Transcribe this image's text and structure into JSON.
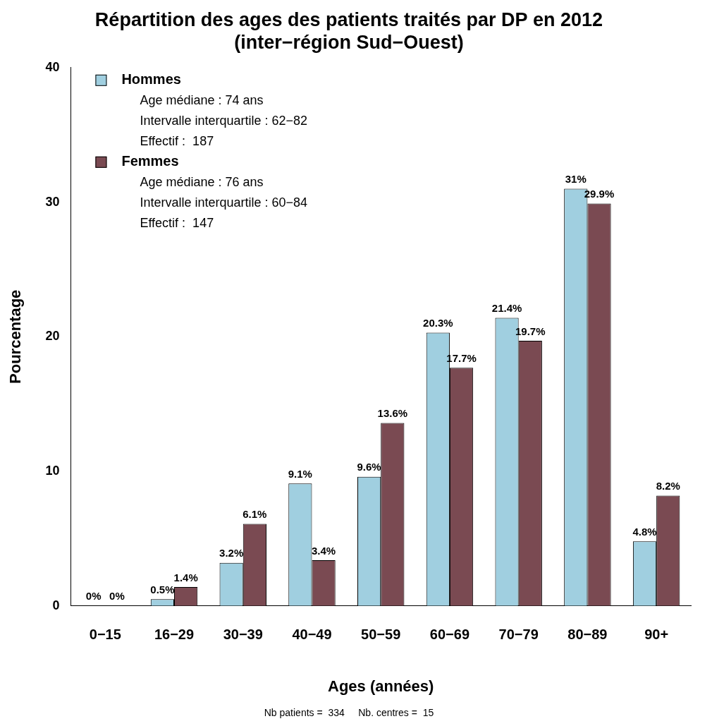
{
  "chart_data": {
    "type": "bar",
    "title": [
      "Répartition des ages des patients traités par DP en 2012",
      "(inter−région Sud−Ouest)"
    ],
    "x_label": "Ages (années)",
    "y_label": "Pourcentage",
    "footnote": "Nb patients =  334     Nb. centres =  15",
    "categories": [
      "0−15",
      "16−29",
      "30−39",
      "40−49",
      "50−59",
      "60−69",
      "70−79",
      "80−89",
      "90+"
    ],
    "series": [
      {
        "name": "Hommes",
        "color": "#a0cfe0",
        "values": [
          0,
          0.5,
          3.2,
          9.1,
          9.6,
          20.3,
          21.4,
          31,
          4.8
        ],
        "value_labels": [
          "0%",
          "0.5%",
          "3.2%",
          "9.1%",
          "9.6%",
          "20.3%",
          "21.4%",
          "31%",
          "4.8%"
        ],
        "details": [
          "Age médiane : 74 ans",
          "Intervalle interquartile : 62−82",
          "Effectif :  187"
        ]
      },
      {
        "name": "Femmes",
        "color": "#7a4a52",
        "values": [
          0,
          1.4,
          6.1,
          3.4,
          13.6,
          17.7,
          19.7,
          29.9,
          8.2
        ],
        "value_labels": [
          "0%",
          "1.4%",
          "6.1%",
          "3.4%",
          "13.6%",
          "17.7%",
          "19.7%",
          "29.9%",
          "8.2%"
        ],
        "details": [
          "Age médiane : 76 ans",
          "Intervalle interquartile : 60−84",
          "Effectif :  147"
        ]
      }
    ],
    "ylim": [
      0,
      40
    ],
    "yticks": [
      0,
      10,
      20,
      30,
      40
    ],
    "grid": false,
    "legend": "top-left",
    "data_labels": true
  }
}
